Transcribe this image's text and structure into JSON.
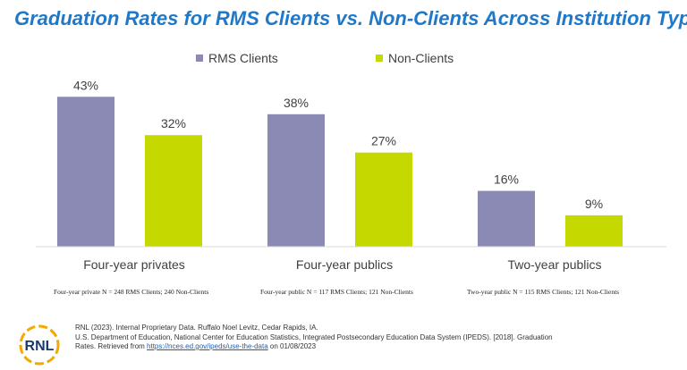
{
  "title": "Graduation Rates for RMS Clients vs. Non-Clients Across Institution Types",
  "chart_data": {
    "type": "bar",
    "title": "Graduation Rates for RMS Clients vs. Non-Clients Across Institution Types",
    "categories": [
      "Four-year privates",
      "Four-year publics",
      "Two-year publics"
    ],
    "series": [
      {
        "name": "RMS Clients",
        "color": "#8a8ab4",
        "values": [
          43,
          38,
          16
        ],
        "labels": [
          "43%",
          "38%",
          "16%"
        ]
      },
      {
        "name": "Non-Clients",
        "color": "#c5d800",
        "values": [
          32,
          27,
          9
        ],
        "labels": [
          "32%",
          "27%",
          "9%"
        ]
      }
    ],
    "xlabel": "",
    "ylabel": "",
    "ylim": [
      0,
      50
    ],
    "legend": "top-center",
    "grid": false
  },
  "notes": [
    "Four-year private N = 248 RMS Clients; 240 Non-Clients",
    "Four-year public N = 117 RMS Clients; 121 Non-Clients",
    "Two-year public N = 115 RMS Clients; 121 Non-Clients"
  ],
  "footer": {
    "line1": "RNL (2023). Internal Proprietary Data. Ruffalo Noel Levitz, Cedar Rapids, IA.",
    "line2": "U.S. Department of Education, National Center for Education Statistics, Integrated Postsecondary Education Data System (IPEDS). [2018]. Graduation",
    "line3_prefix": "Rates. Retrieved from ",
    "link": "https://nces.ed.gov/ipeds/use-the-data",
    "line3_suffix": " on 01/08/2023"
  },
  "logo": {
    "text": "RNL"
  },
  "colors": {
    "title": "#1f78c8",
    "axis": "#d9d9d9"
  }
}
